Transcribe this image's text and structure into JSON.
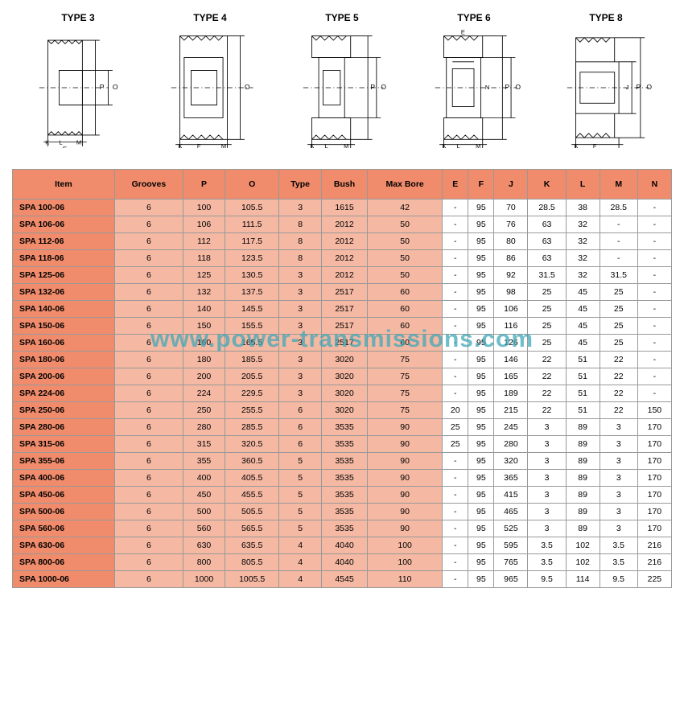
{
  "diagram_labels": {
    "type3": "TYPE 3",
    "type4": "TYPE 4",
    "type5": "TYPE 5",
    "type6": "TYPE 6",
    "type8": "TYPE 8"
  },
  "headers": [
    "Item",
    "Grooves",
    "P",
    "O",
    "Type",
    "Bush",
    "Max Bore",
    "E",
    "F",
    "J",
    "K",
    "L",
    "M",
    "N"
  ],
  "rows": [
    [
      "SPA 100-06",
      "6",
      "100",
      "105.5",
      "3",
      "1615",
      "42",
      "-",
      "95",
      "70",
      "28.5",
      "38",
      "28.5",
      "-"
    ],
    [
      "SPA 106-06",
      "6",
      "106",
      "111.5",
      "8",
      "2012",
      "50",
      "-",
      "95",
      "76",
      "63",
      "32",
      "-",
      "-"
    ],
    [
      "SPA 112-06",
      "6",
      "112",
      "117.5",
      "8",
      "2012",
      "50",
      "-",
      "95",
      "80",
      "63",
      "32",
      "-",
      "-"
    ],
    [
      "SPA 118-06",
      "6",
      "118",
      "123.5",
      "8",
      "2012",
      "50",
      "-",
      "95",
      "86",
      "63",
      "32",
      "-",
      "-"
    ],
    [
      "SPA 125-06",
      "6",
      "125",
      "130.5",
      "3",
      "2012",
      "50",
      "-",
      "95",
      "92",
      "31.5",
      "32",
      "31.5",
      "-"
    ],
    [
      "SPA 132-06",
      "6",
      "132",
      "137.5",
      "3",
      "2517",
      "60",
      "-",
      "95",
      "98",
      "25",
      "45",
      "25",
      "-"
    ],
    [
      "SPA 140-06",
      "6",
      "140",
      "145.5",
      "3",
      "2517",
      "60",
      "-",
      "95",
      "106",
      "25",
      "45",
      "25",
      "-"
    ],
    [
      "SPA 150-06",
      "6",
      "150",
      "155.5",
      "3",
      "2517",
      "60",
      "-",
      "95",
      "116",
      "25",
      "45",
      "25",
      "-"
    ],
    [
      "SPA 160-06",
      "6",
      "160",
      "165.5",
      "3",
      "2517",
      "60",
      "-",
      "95",
      "126",
      "25",
      "45",
      "25",
      "-"
    ],
    [
      "SPA 180-06",
      "6",
      "180",
      "185.5",
      "3",
      "3020",
      "75",
      "-",
      "95",
      "146",
      "22",
      "51",
      "22",
      "-"
    ],
    [
      "SPA 200-06",
      "6",
      "200",
      "205.5",
      "3",
      "3020",
      "75",
      "-",
      "95",
      "165",
      "22",
      "51",
      "22",
      "-"
    ],
    [
      "SPA 224-06",
      "6",
      "224",
      "229.5",
      "3",
      "3020",
      "75",
      "-",
      "95",
      "189",
      "22",
      "51",
      "22",
      "-"
    ],
    [
      "SPA 250-06",
      "6",
      "250",
      "255.5",
      "6",
      "3020",
      "75",
      "20",
      "95",
      "215",
      "22",
      "51",
      "22",
      "150"
    ],
    [
      "SPA 280-06",
      "6",
      "280",
      "285.5",
      "6",
      "3535",
      "90",
      "25",
      "95",
      "245",
      "3",
      "89",
      "3",
      "170"
    ],
    [
      "SPA 315-06",
      "6",
      "315",
      "320.5",
      "6",
      "3535",
      "90",
      "25",
      "95",
      "280",
      "3",
      "89",
      "3",
      "170"
    ],
    [
      "SPA 355-06",
      "6",
      "355",
      "360.5",
      "5",
      "3535",
      "90",
      "-",
      "95",
      "320",
      "3",
      "89",
      "3",
      "170"
    ],
    [
      "SPA 400-06",
      "6",
      "400",
      "405.5",
      "5",
      "3535",
      "90",
      "-",
      "95",
      "365",
      "3",
      "89",
      "3",
      "170"
    ],
    [
      "SPA 450-06",
      "6",
      "450",
      "455.5",
      "5",
      "3535",
      "90",
      "-",
      "95",
      "415",
      "3",
      "89",
      "3",
      "170"
    ],
    [
      "SPA 500-06",
      "6",
      "500",
      "505.5",
      "5",
      "3535",
      "90",
      "-",
      "95",
      "465",
      "3",
      "89",
      "3",
      "170"
    ],
    [
      "SPA 560-06",
      "6",
      "560",
      "565.5",
      "5",
      "3535",
      "90",
      "-",
      "95",
      "525",
      "3",
      "89",
      "3",
      "170"
    ],
    [
      "SPA 630-06",
      "6",
      "630",
      "635.5",
      "4",
      "4040",
      "100",
      "-",
      "95",
      "595",
      "3.5",
      "102",
      "3.5",
      "216"
    ],
    [
      "SPA 800-06",
      "6",
      "800",
      "805.5",
      "4",
      "4040",
      "100",
      "-",
      "95",
      "765",
      "3.5",
      "102",
      "3.5",
      "216"
    ],
    [
      "SPA 1000-06",
      "6",
      "1000",
      "1005.5",
      "4",
      "4545",
      "110",
      "-",
      "95",
      "965",
      "9.5",
      "114",
      "9.5",
      "225"
    ]
  ],
  "watermark": "www.power-transmissions.com",
  "shaded_cols": 7
}
